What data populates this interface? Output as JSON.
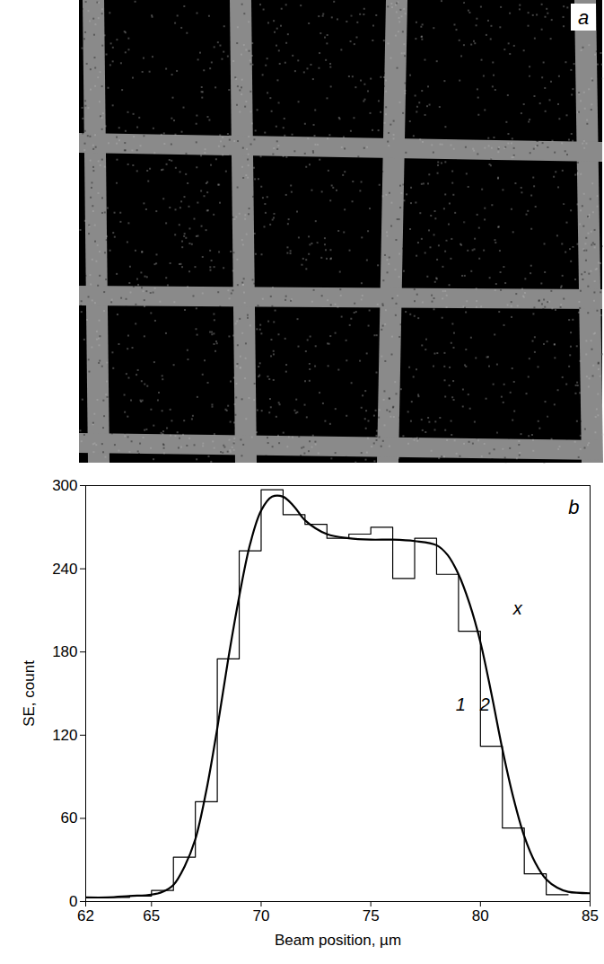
{
  "chart_data": [
    {
      "type": "image",
      "panel": "a"
    },
    {
      "type": "line",
      "panel": "b",
      "xlabel": "Beam position, µm",
      "ylabel": "SE, count",
      "xlim": [
        62,
        85
      ],
      "xticks": [
        62,
        65,
        70,
        75,
        80,
        85
      ],
      "ylim": [
        0,
        300
      ],
      "yticks": [
        0,
        60,
        120,
        180,
        240,
        300
      ],
      "series": [
        {
          "type": "step",
          "color": "#000000",
          "bins": [
            62,
            63,
            64,
            65,
            66,
            67,
            68,
            69,
            70,
            71,
            72,
            73,
            74,
            75,
            76,
            77,
            78,
            79,
            80,
            81,
            82,
            83,
            84
          ],
          "values": [
            3,
            3,
            4,
            8,
            32,
            72,
            175,
            253,
            297,
            279,
            272,
            262,
            265,
            270,
            233,
            262,
            236,
            195,
            112,
            53,
            20,
            5
          ]
        },
        {
          "type": "line",
          "color": "#000000",
          "x": [
            62,
            63,
            64,
            65,
            65.5,
            66,
            66.5,
            67,
            67.5,
            68,
            68.5,
            69,
            69.5,
            70,
            70.5,
            71,
            71.5,
            72,
            73,
            74,
            75,
            76,
            77,
            78,
            78.5,
            79,
            79.5,
            80,
            80.5,
            81,
            81.5,
            82,
            82.5,
            83,
            83.5,
            84,
            85
          ],
          "values": [
            3,
            3,
            4,
            5,
            7,
            12,
            25,
            45,
            80,
            125,
            175,
            220,
            258,
            282,
            292,
            292,
            285,
            275,
            265,
            262,
            261,
            261,
            260,
            257,
            250,
            236,
            215,
            187,
            150,
            110,
            75,
            47,
            28,
            16,
            10,
            7,
            6
          ]
        }
      ],
      "annotations": [
        {
          "text": "x",
          "x": 81.7,
          "y": 211
        },
        {
          "text": "1",
          "x": 79.1,
          "y": 142
        },
        {
          "text": "2",
          "x": 80.2,
          "y": 142
        }
      ]
    }
  ]
}
